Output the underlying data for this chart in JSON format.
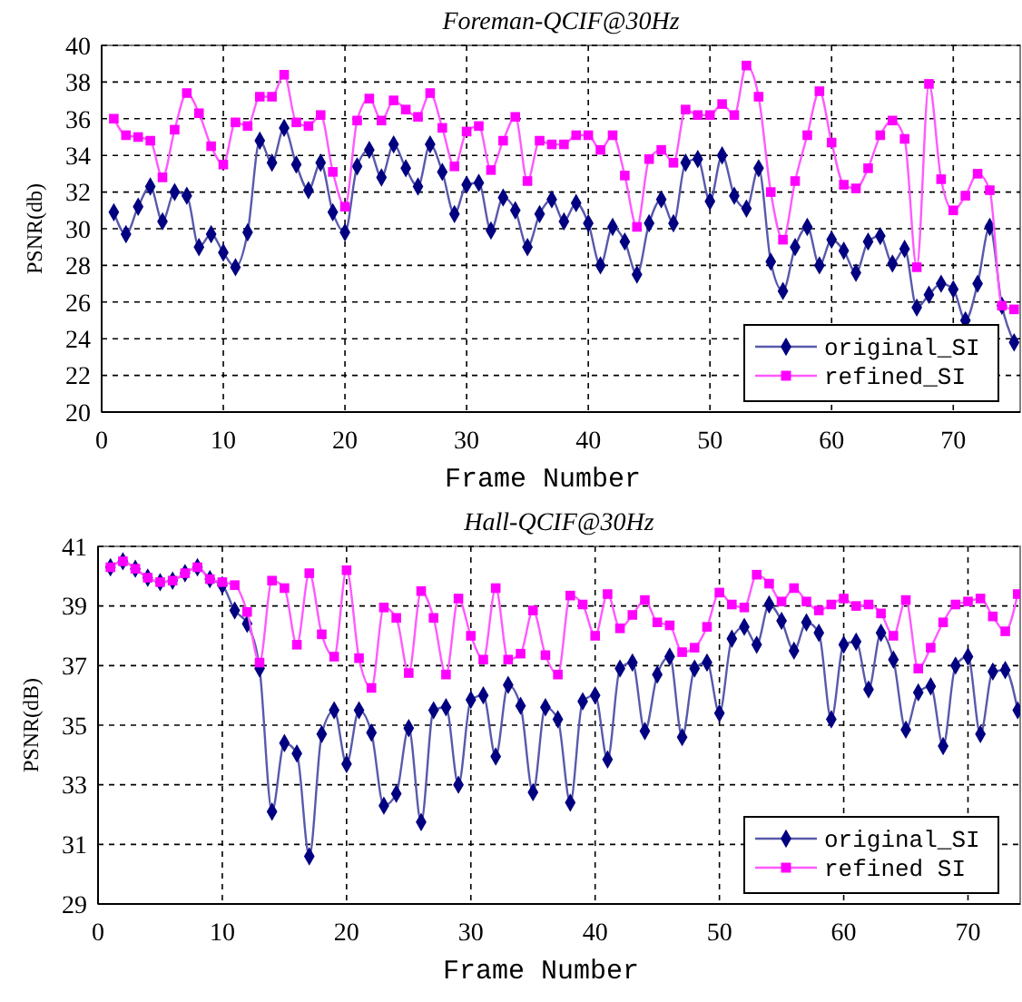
{
  "chart_data": [
    {
      "type": "line",
      "title": "Foreman-QCIF@30Hz",
      "xlabel": "Frame Number",
      "ylabel": "PSNR(db)",
      "x": [
        1,
        2,
        3,
        4,
        5,
        6,
        7,
        8,
        9,
        10,
        11,
        12,
        13,
        14,
        15,
        16,
        17,
        18,
        19,
        20,
        21,
        22,
        23,
        24,
        25,
        26,
        27,
        28,
        29,
        30,
        31,
        32,
        33,
        34,
        35,
        36,
        37,
        38,
        39,
        40,
        41,
        42,
        43,
        44,
        45,
        46,
        47,
        48,
        49,
        50,
        51,
        52,
        53,
        54,
        55,
        56,
        57,
        58,
        59,
        60,
        61,
        62,
        63,
        64,
        65,
        66,
        67,
        68,
        69,
        70,
        71,
        72,
        73,
        74,
        75
      ],
      "xlim": [
        0,
        75.5
      ],
      "xticks": [
        0,
        10,
        20,
        30,
        40,
        50,
        60,
        70
      ],
      "ylim": [
        20,
        40
      ],
      "yticks": [
        20,
        22,
        24,
        26,
        28,
        30,
        32,
        34,
        36,
        38,
        40
      ],
      "grid": true,
      "legend": "bottom right",
      "line_style": "solid",
      "series": [
        {
          "name": "original_SI",
          "color": "#000080",
          "marker": "diamond",
          "values": [
            30.9,
            29.7,
            31.2,
            32.3,
            30.4,
            32.0,
            31.8,
            29.0,
            29.7,
            28.7,
            27.9,
            29.8,
            34.8,
            33.6,
            35.5,
            33.5,
            32.1,
            33.6,
            30.9,
            29.8,
            33.4,
            34.3,
            32.8,
            34.6,
            33.3,
            32.3,
            34.6,
            33.1,
            30.8,
            32.4,
            32.5,
            29.9,
            31.7,
            31.0,
            29.0,
            30.8,
            31.6,
            30.4,
            31.4,
            30.3,
            28.0,
            30.1,
            29.3,
            27.5,
            30.3,
            31.6,
            30.3,
            33.6,
            33.8,
            31.5,
            34.0,
            31.8,
            31.1,
            33.3,
            28.2,
            26.6,
            29.0,
            30.1,
            28.0,
            29.4,
            28.8,
            27.6,
            29.3,
            29.6,
            28.1,
            28.9,
            25.7,
            26.4,
            27.0,
            26.7,
            25.0,
            27.0,
            30.1,
            25.8,
            23.8
          ]
        },
        {
          "name": "refined_SI",
          "color": "#ff00ff",
          "marker": "square",
          "values": [
            36.0,
            35.1,
            35.0,
            34.8,
            32.8,
            35.4,
            37.4,
            36.3,
            34.5,
            33.5,
            35.8,
            35.6,
            37.2,
            37.2,
            38.4,
            35.8,
            35.6,
            36.2,
            33.1,
            31.2,
            35.9,
            37.1,
            35.9,
            37.0,
            36.5,
            36.1,
            37.4,
            35.5,
            33.4,
            35.3,
            35.6,
            33.2,
            34.8,
            36.1,
            32.6,
            34.8,
            34.6,
            34.6,
            35.1,
            35.1,
            34.3,
            35.1,
            32.9,
            30.1,
            33.8,
            34.3,
            33.6,
            36.5,
            36.2,
            36.2,
            36.8,
            36.2,
            38.9,
            37.2,
            32.0,
            29.4,
            32.6,
            35.1,
            37.5,
            34.7,
            32.4,
            32.2,
            33.3,
            35.1,
            35.9,
            34.9,
            27.9,
            37.9,
            32.7,
            31.0,
            31.8,
            33.0,
            32.1,
            25.8,
            25.6
          ]
        }
      ]
    },
    {
      "type": "line",
      "title": "Hall-QCIF@30Hz",
      "xlabel": "Frame Number",
      "ylabel": "PSNR(dB)",
      "x": [
        1,
        2,
        3,
        4,
        5,
        6,
        7,
        8,
        9,
        10,
        11,
        12,
        13,
        14,
        15,
        16,
        17,
        18,
        19,
        20,
        21,
        22,
        23,
        24,
        25,
        26,
        27,
        28,
        29,
        30,
        31,
        32,
        33,
        34,
        35,
        36,
        37,
        38,
        39,
        40,
        41,
        42,
        43,
        44,
        45,
        46,
        47,
        48,
        49,
        50,
        51,
        52,
        53,
        54,
        55,
        56,
        57,
        58,
        59,
        60,
        61,
        62,
        63,
        64,
        65,
        66,
        67,
        68,
        69,
        70,
        71,
        72,
        73,
        74
      ],
      "xlim": [
        0,
        74.2
      ],
      "xticks": [
        0,
        10,
        20,
        30,
        40,
        50,
        60,
        70
      ],
      "ylim": [
        29,
        41
      ],
      "yticks": [
        29,
        31,
        33,
        35,
        37,
        39,
        41
      ],
      "grid": true,
      "legend": "bottom right",
      "line_style": "solid",
      "series": [
        {
          "name": "original_SI",
          "color": "#000080",
          "marker": "diamond",
          "values": [
            40.3,
            40.5,
            40.25,
            39.95,
            39.8,
            39.85,
            40.1,
            40.3,
            39.9,
            39.7,
            38.85,
            38.4,
            36.9,
            32.1,
            34.4,
            34.05,
            30.6,
            34.7,
            35.5,
            33.7,
            35.5,
            34.75,
            32.3,
            32.7,
            34.9,
            31.75,
            35.5,
            35.6,
            33.0,
            35.85,
            36.0,
            33.95,
            36.35,
            35.65,
            32.75,
            35.6,
            35.2,
            32.4,
            35.8,
            36.0,
            33.85,
            36.9,
            37.1,
            34.8,
            36.7,
            37.3,
            34.6,
            36.9,
            37.1,
            35.4,
            37.9,
            38.3,
            37.7,
            39.05,
            38.5,
            37.5,
            38.45,
            38.1,
            35.2,
            37.7,
            37.8,
            36.2,
            38.1,
            37.2,
            34.85,
            36.1,
            36.3,
            34.3,
            37.0,
            37.3,
            34.7,
            36.8,
            36.85,
            35.5
          ]
        },
        {
          "name": "refined SI",
          "color": "#ff00ff",
          "marker": "square",
          "values": [
            40.3,
            40.5,
            40.25,
            39.95,
            39.8,
            39.85,
            40.1,
            40.3,
            39.9,
            39.8,
            39.7,
            38.8,
            37.1,
            39.85,
            39.6,
            37.7,
            40.1,
            38.05,
            37.3,
            40.2,
            37.25,
            36.25,
            38.95,
            38.6,
            36.75,
            39.5,
            38.6,
            36.7,
            39.25,
            38.0,
            37.2,
            39.6,
            37.2,
            37.4,
            38.85,
            37.35,
            36.7,
            39.35,
            39.05,
            38.0,
            39.4,
            38.25,
            38.7,
            39.2,
            38.45,
            38.35,
            37.45,
            37.6,
            38.3,
            39.45,
            39.05,
            38.95,
            40.05,
            39.75,
            39.15,
            39.6,
            39.15,
            38.85,
            39.05,
            39.25,
            39.0,
            39.05,
            38.75,
            38.0,
            39.2,
            36.9,
            37.6,
            38.45,
            39.05,
            39.15,
            39.25,
            38.65,
            38.15,
            39.4
          ]
        }
      ]
    }
  ]
}
